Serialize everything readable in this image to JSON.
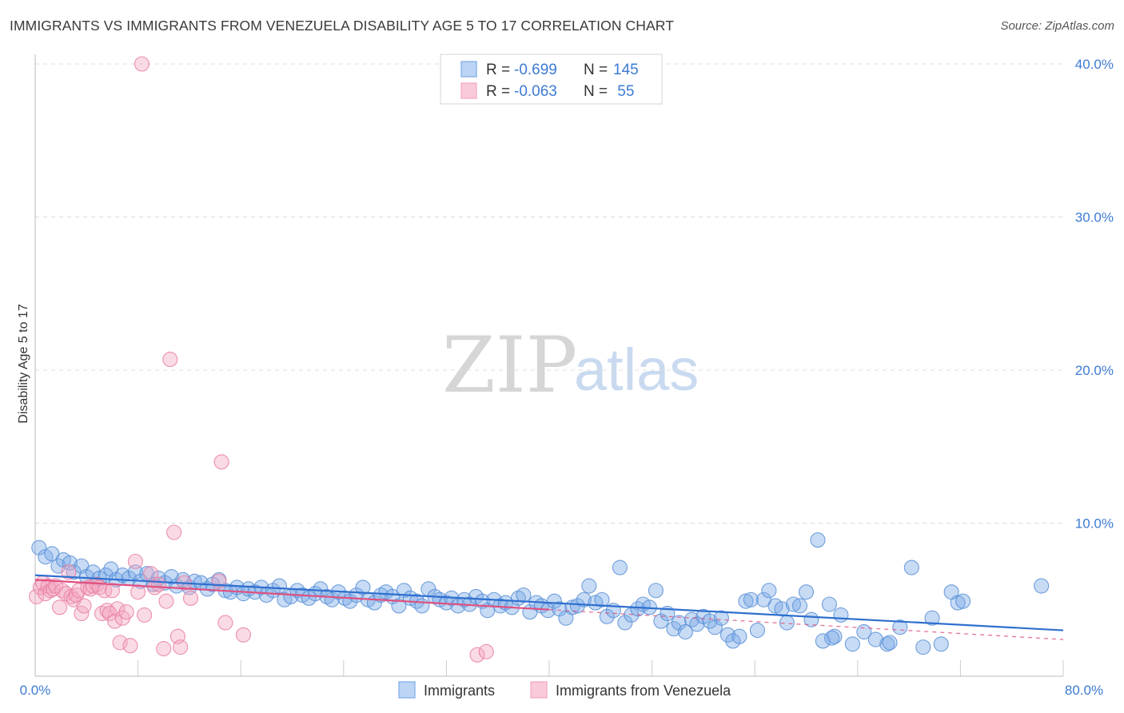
{
  "title": "IMMIGRANTS VS IMMIGRANTS FROM VENEZUELA DISABILITY AGE 5 TO 17 CORRELATION CHART",
  "source": "Source: ZipAtlas.com",
  "watermark": {
    "zip": "ZIP",
    "atlas": "atlas"
  },
  "legend_top": {
    "rows": [
      {
        "r_label": "R = ",
        "r_value": "-0.699",
        "n_label": "N = ",
        "n_value": "145"
      },
      {
        "r_label": "R = ",
        "r_value": "-0.063",
        "n_label": "N = ",
        "n_value": " 55"
      }
    ]
  },
  "chart_data": {
    "type": "scatter",
    "title": "IMMIGRANTS VS IMMIGRANTS FROM VENEZUELA DISABILITY AGE 5 TO 17 CORRELATION CHART",
    "xlabel": "",
    "ylabel": "Disability Age 5 to 17",
    "xlim": [
      0,
      80
    ],
    "ylim": [
      0,
      40
    ],
    "x_tick_labels": [
      "0.0%",
      "80.0%"
    ],
    "y_tick_labels": [
      "10.0%",
      "20.0%",
      "30.0%",
      "40.0%"
    ],
    "y_ticks": [
      10,
      20,
      30,
      40
    ],
    "grid": true,
    "legend_placement": "top-center",
    "series": [
      {
        "name": "Immigrants",
        "color": "#7aaae8",
        "stroke": "#5b8fd6",
        "trend": {
          "x": [
            0,
            80
          ],
          "y": [
            6.6,
            3.0
          ],
          "color": "#2f6fce",
          "dashed_from": null
        },
        "points": [
          [
            0.3,
            8.4
          ],
          [
            0.8,
            7.8
          ],
          [
            1.3,
            8.0
          ],
          [
            1.8,
            7.2
          ],
          [
            2.2,
            7.6
          ],
          [
            2.7,
            7.4
          ],
          [
            3.0,
            6.8
          ],
          [
            3.6,
            7.2
          ],
          [
            4.0,
            6.5
          ],
          [
            4.5,
            6.8
          ],
          [
            5.0,
            6.4
          ],
          [
            5.5,
            6.6
          ],
          [
            5.9,
            7.0
          ],
          [
            6.3,
            6.3
          ],
          [
            6.8,
            6.6
          ],
          [
            7.3,
            6.4
          ],
          [
            7.8,
            6.8
          ],
          [
            8.2,
            6.2
          ],
          [
            8.7,
            6.7
          ],
          [
            9.2,
            6.0
          ],
          [
            9.6,
            6.4
          ],
          [
            10.1,
            6.1
          ],
          [
            10.6,
            6.5
          ],
          [
            11.0,
            5.9
          ],
          [
            11.5,
            6.3
          ],
          [
            12.0,
            5.8
          ],
          [
            12.4,
            6.2
          ],
          [
            12.9,
            6.1
          ],
          [
            13.4,
            5.7
          ],
          [
            13.8,
            6.0
          ],
          [
            14.3,
            6.3
          ],
          [
            14.8,
            5.6
          ],
          [
            15.2,
            5.5
          ],
          [
            15.7,
            5.8
          ],
          [
            16.2,
            5.4
          ],
          [
            16.6,
            5.7
          ],
          [
            17.1,
            5.5
          ],
          [
            17.6,
            5.8
          ],
          [
            18.0,
            5.3
          ],
          [
            18.5,
            5.6
          ],
          [
            19.0,
            5.9
          ],
          [
            19.4,
            5.0
          ],
          [
            19.9,
            5.2
          ],
          [
            20.4,
            5.6
          ],
          [
            20.8,
            5.3
          ],
          [
            21.3,
            5.1
          ],
          [
            21.8,
            5.4
          ],
          [
            22.2,
            5.7
          ],
          [
            22.7,
            5.2
          ],
          [
            23.1,
            5.0
          ],
          [
            23.6,
            5.5
          ],
          [
            24.1,
            5.1
          ],
          [
            24.5,
            4.9
          ],
          [
            25.0,
            5.3
          ],
          [
            25.5,
            5.8
          ],
          [
            25.9,
            5.0
          ],
          [
            26.4,
            4.8
          ],
          [
            26.9,
            5.3
          ],
          [
            27.3,
            5.5
          ],
          [
            27.8,
            5.2
          ],
          [
            28.3,
            4.6
          ],
          [
            28.7,
            5.6
          ],
          [
            29.2,
            5.1
          ],
          [
            29.7,
            4.9
          ],
          [
            30.1,
            4.6
          ],
          [
            30.6,
            5.7
          ],
          [
            31.1,
            5.2
          ],
          [
            31.5,
            5.0
          ],
          [
            32.0,
            4.8
          ],
          [
            32.4,
            5.1
          ],
          [
            32.9,
            4.6
          ],
          [
            33.4,
            5.0
          ],
          [
            33.8,
            4.7
          ],
          [
            34.3,
            5.2
          ],
          [
            34.8,
            4.9
          ],
          [
            35.2,
            4.3
          ],
          [
            35.7,
            5.0
          ],
          [
            36.2,
            4.6
          ],
          [
            36.6,
            4.8
          ],
          [
            37.1,
            4.5
          ],
          [
            37.6,
            5.1
          ],
          [
            38.0,
            5.3
          ],
          [
            38.5,
            4.2
          ],
          [
            39.0,
            4.8
          ],
          [
            39.4,
            4.6
          ],
          [
            39.9,
            4.3
          ],
          [
            40.4,
            4.9
          ],
          [
            40.8,
            4.4
          ],
          [
            41.3,
            3.8
          ],
          [
            41.8,
            4.5
          ],
          [
            42.2,
            4.6
          ],
          [
            42.7,
            5.0
          ],
          [
            43.1,
            5.9
          ],
          [
            43.6,
            4.8
          ],
          [
            44.1,
            5.0
          ],
          [
            44.5,
            3.9
          ],
          [
            45.0,
            4.3
          ],
          [
            45.5,
            7.1
          ],
          [
            45.9,
            3.5
          ],
          [
            46.4,
            4.0
          ],
          [
            46.9,
            4.4
          ],
          [
            47.3,
            4.7
          ],
          [
            47.8,
            4.5
          ],
          [
            48.3,
            5.6
          ],
          [
            48.7,
            3.6
          ],
          [
            49.2,
            4.1
          ],
          [
            49.7,
            3.1
          ],
          [
            50.1,
            3.5
          ],
          [
            50.6,
            2.9
          ],
          [
            51.1,
            3.7
          ],
          [
            51.5,
            3.4
          ],
          [
            52.0,
            3.9
          ],
          [
            52.5,
            3.6
          ],
          [
            52.9,
            3.2
          ],
          [
            53.4,
            3.8
          ],
          [
            53.9,
            2.7
          ],
          [
            54.3,
            2.3
          ],
          [
            54.8,
            2.6
          ],
          [
            55.3,
            4.9
          ],
          [
            55.7,
            5.0
          ],
          [
            56.2,
            3.0
          ],
          [
            56.7,
            5.0
          ],
          [
            57.1,
            5.6
          ],
          [
            57.6,
            4.6
          ],
          [
            58.1,
            4.4
          ],
          [
            58.5,
            3.5
          ],
          [
            59.0,
            4.7
          ],
          [
            59.5,
            4.6
          ],
          [
            60.0,
            5.5
          ],
          [
            60.4,
            3.7
          ],
          [
            60.9,
            8.9
          ],
          [
            61.3,
            2.3
          ],
          [
            61.8,
            4.7
          ],
          [
            62.2,
            2.6
          ],
          [
            62.7,
            4.0
          ],
          [
            63.6,
            2.1
          ],
          [
            64.5,
            2.9
          ],
          [
            65.4,
            2.4
          ],
          [
            66.3,
            2.1
          ],
          [
            67.3,
            3.2
          ],
          [
            68.2,
            7.1
          ],
          [
            69.1,
            1.9
          ],
          [
            69.8,
            3.8
          ],
          [
            70.5,
            2.1
          ],
          [
            71.3,
            5.5
          ],
          [
            71.8,
            4.8
          ],
          [
            72.2,
            4.9
          ],
          [
            78.3,
            5.9
          ],
          [
            62.0,
            2.5
          ],
          [
            66.5,
            2.2
          ]
        ]
      },
      {
        "name": "Immigrants from Venezuela",
        "color": "#f4a7c0",
        "stroke": "#e87fa3",
        "trend": {
          "x": [
            0,
            80
          ],
          "y": [
            6.3,
            2.4
          ],
          "color": "#e0507f",
          "solid_until": 40
        },
        "points": [
          [
            0.1,
            5.2
          ],
          [
            0.4,
            5.8
          ],
          [
            0.6,
            6.1
          ],
          [
            0.8,
            5.4
          ],
          [
            1.0,
            5.9
          ],
          [
            1.2,
            5.6
          ],
          [
            1.4,
            5.7
          ],
          [
            1.6,
            5.9
          ],
          [
            1.9,
            4.5
          ],
          [
            2.1,
            5.6
          ],
          [
            2.4,
            5.4
          ],
          [
            2.6,
            6.8
          ],
          [
            2.8,
            5.2
          ],
          [
            3.0,
            5.0
          ],
          [
            3.2,
            5.3
          ],
          [
            3.4,
            5.6
          ],
          [
            3.6,
            4.1
          ],
          [
            3.8,
            4.6
          ],
          [
            4.1,
            5.8
          ],
          [
            4.3,
            5.7
          ],
          [
            4.5,
            5.9
          ],
          [
            4.8,
            6.0
          ],
          [
            5.0,
            5.8
          ],
          [
            5.2,
            4.1
          ],
          [
            5.4,
            5.6
          ],
          [
            5.6,
            4.3
          ],
          [
            5.8,
            4.1
          ],
          [
            6.0,
            5.6
          ],
          [
            6.2,
            3.6
          ],
          [
            6.4,
            4.4
          ],
          [
            6.6,
            2.2
          ],
          [
            6.8,
            3.8
          ],
          [
            7.1,
            4.2
          ],
          [
            7.4,
            2.0
          ],
          [
            7.8,
            7.5
          ],
          [
            8.0,
            5.5
          ],
          [
            8.3,
            40.0
          ],
          [
            8.5,
            4.0
          ],
          [
            9.0,
            6.7
          ],
          [
            9.3,
            5.8
          ],
          [
            9.6,
            6.0
          ],
          [
            10.0,
            1.8
          ],
          [
            10.2,
            4.9
          ],
          [
            10.5,
            20.7
          ],
          [
            10.8,
            9.4
          ],
          [
            11.1,
            2.6
          ],
          [
            11.3,
            1.9
          ],
          [
            11.6,
            6.1
          ],
          [
            12.1,
            5.1
          ],
          [
            14.3,
            6.2
          ],
          [
            14.5,
            14.0
          ],
          [
            14.8,
            3.5
          ],
          [
            16.2,
            2.7
          ],
          [
            34.4,
            1.4
          ],
          [
            35.1,
            1.6
          ]
        ]
      }
    ]
  },
  "bottom_legend": [
    {
      "label": "Immigrants"
    },
    {
      "label": "Immigrants from Venezuela"
    }
  ]
}
